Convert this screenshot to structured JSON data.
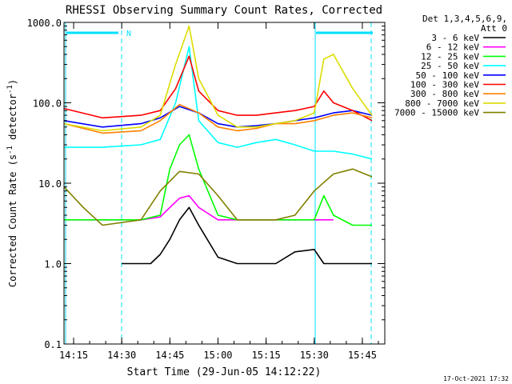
{
  "chart_data": {
    "type": "line",
    "title": "RHESSI Observing Summary Count Rates, Corrected",
    "xlabel": "Start Time (29-Jun-05 14:12:22)",
    "ylabel_main": "Corrected Count Rate (s",
    "ylabel_sup1": "-1",
    "ylabel_mid": " detector",
    "ylabel_sup2": "-1",
    "ylabel_end": ")",
    "y_scale": "log",
    "ylim": [
      0.1,
      1000
    ],
    "xlim": [
      "14:12",
      "15:52"
    ],
    "xticks": [
      "14:15",
      "14:30",
      "14:45",
      "15:00",
      "15:15",
      "15:30",
      "15:45"
    ],
    "yticks": [
      "1000.0",
      "100.0",
      "10.0",
      "1.0",
      "0.1"
    ],
    "legend_header_1": "Det 1,3,4,5,6,9,",
    "legend_header_2": "Att 0",
    "legend_position": "right",
    "night_marker": "N",
    "timestamp": "17-Oct-2021 17:32",
    "series": [
      {
        "name": "3 - 6 keV",
        "color": "#000000",
        "x": [
          14.5,
          14.6,
          14.65,
          14.7,
          14.75,
          14.8,
          14.85,
          14.9,
          15.0,
          15.1,
          15.2,
          15.3,
          15.4,
          15.5,
          15.55,
          15.6,
          15.7,
          15.8
        ],
        "y": [
          1,
          1,
          1,
          1.3,
          2,
          3.5,
          5,
          3,
          1.2,
          1,
          1,
          1,
          1.4,
          1.5,
          1.0,
          1.0,
          1.0,
          1.0
        ]
      },
      {
        "name": "6 - 12 keV",
        "color": "#ff00ff",
        "x": [
          14.2,
          14.4,
          14.6,
          14.7,
          14.75,
          14.8,
          14.85,
          14.9,
          15.0,
          15.1,
          15.2,
          15.3,
          15.4,
          15.5,
          15.6
        ],
        "y": [
          3.5,
          3.5,
          3.5,
          3.8,
          5,
          6.5,
          7,
          5,
          3.5,
          3.5,
          3.5,
          3.5,
          3.5,
          3.5,
          3.5
        ]
      },
      {
        "name": "12 - 25 keV",
        "color": "#00ff00",
        "x": [
          14.2,
          14.4,
          14.6,
          14.7,
          14.75,
          14.8,
          14.85,
          14.9,
          15.0,
          15.1,
          15.2,
          15.3,
          15.4,
          15.5,
          15.55,
          15.6,
          15.7,
          15.8
        ],
        "y": [
          3.5,
          3.5,
          3.5,
          4,
          15,
          30,
          40,
          15,
          4,
          3.5,
          3.5,
          3.5,
          3.5,
          3.5,
          7,
          4,
          3,
          3
        ]
      },
      {
        "name": "25 - 50 keV",
        "color": "#00ffff",
        "x": [
          14.2,
          14.4,
          14.6,
          14.7,
          14.78,
          14.85,
          14.9,
          15.0,
          15.1,
          15.2,
          15.3,
          15.4,
          15.5,
          15.6,
          15.7,
          15.8
        ],
        "y": [
          28,
          28,
          30,
          35,
          100,
          500,
          60,
          32,
          28,
          32,
          35,
          30,
          25,
          25,
          23,
          20
        ]
      },
      {
        "name": "50 - 100 keV",
        "color": "#0000ff",
        "x": [
          14.2,
          14.4,
          14.6,
          14.7,
          14.8,
          14.9,
          15.0,
          15.1,
          15.2,
          15.3,
          15.4,
          15.5,
          15.6,
          15.7,
          15.8
        ],
        "y": [
          60,
          50,
          55,
          65,
          90,
          75,
          55,
          50,
          52,
          55,
          60,
          65,
          75,
          80,
          70
        ]
      },
      {
        "name": "100 - 300 keV",
        "color": "#ff0000",
        "x": [
          14.2,
          14.4,
          14.6,
          14.7,
          14.78,
          14.85,
          14.9,
          15.0,
          15.1,
          15.2,
          15.3,
          15.4,
          15.5,
          15.55,
          15.6,
          15.7,
          15.8
        ],
        "y": [
          85,
          65,
          70,
          80,
          150,
          380,
          140,
          80,
          70,
          70,
          75,
          80,
          90,
          140,
          100,
          80,
          60
        ]
      },
      {
        "name": "300 - 800 keV",
        "color": "#ff8000",
        "x": [
          14.2,
          14.4,
          14.6,
          14.7,
          14.8,
          14.9,
          15.0,
          15.1,
          15.2,
          15.3,
          15.4,
          15.5,
          15.6,
          15.7,
          15.8
        ],
        "y": [
          55,
          42,
          45,
          60,
          95,
          75,
          50,
          45,
          48,
          55,
          55,
          60,
          70,
          75,
          65
        ]
      },
      {
        "name": "800 - 7000 keV",
        "color": "#dcdc00",
        "x": [
          14.2,
          14.4,
          14.6,
          14.7,
          14.78,
          14.85,
          14.9,
          15.0,
          15.1,
          15.2,
          15.3,
          15.4,
          15.5,
          15.55,
          15.6,
          15.7,
          15.8
        ],
        "y": [
          55,
          45,
          50,
          70,
          300,
          900,
          200,
          70,
          50,
          50,
          55,
          60,
          75,
          350,
          400,
          150,
          70
        ]
      },
      {
        "name": "7000 - 15000 keV",
        "color": "#808000",
        "x": [
          14.2,
          14.3,
          14.4,
          14.6,
          14.7,
          14.8,
          14.9,
          15.0,
          15.1,
          15.2,
          15.3,
          15.4,
          15.5,
          15.6,
          15.7,
          15.8
        ],
        "y": [
          9,
          5,
          3,
          3.5,
          8,
          14,
          13,
          7,
          3.5,
          3.5,
          3.5,
          4,
          8,
          13,
          15,
          12
        ]
      }
    ]
  }
}
